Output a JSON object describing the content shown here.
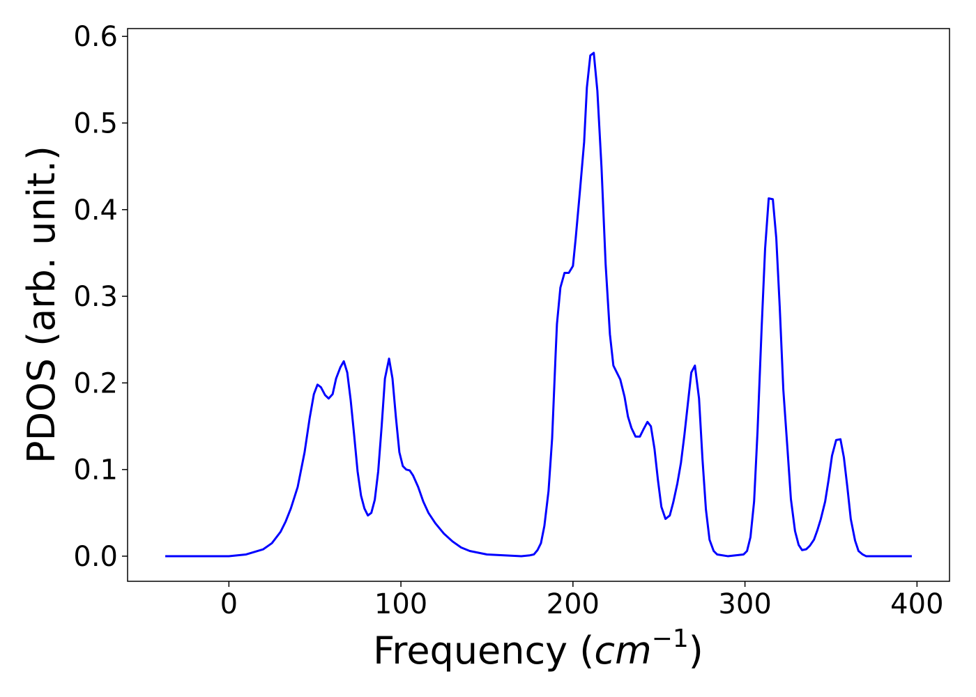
{
  "chart_data": {
    "type": "line",
    "xlabel": [
      "Frequency (",
      "cm",
      "−1",
      ")"
    ],
    "ylabel": "PDOS (arb. unit.)",
    "series": [
      {
        "color": "#0000ff",
        "x": [
          -37,
          -20,
          0,
          10,
          20,
          25,
          30,
          33,
          36,
          40,
          44,
          47,
          49.4,
          51.5,
          53.5,
          55.9,
          58,
          60.3,
          62.3,
          64.8,
          66.8,
          68.8,
          70.8,
          72.8,
          74.8,
          76.8,
          78.8,
          80.8,
          82.8,
          84.8,
          86.8,
          88.8,
          90.7,
          93.1,
          95.1,
          97.1,
          99.1,
          101.1,
          103.1,
          105.1,
          107.1,
          110,
          113,
          116,
          120,
          125,
          130,
          135,
          140,
          150,
          160,
          170,
          175,
          177.3,
          179.4,
          181.4,
          183.4,
          185.8,
          187.9,
          189.9,
          190.7,
          192.7,
          195.1,
          197.6,
          200,
          201.6,
          204,
          206.5,
          208.1,
          210.1,
          212.1,
          214.2,
          216.6,
          219,
          221.5,
          223.5,
          225.5,
          227.5,
          230,
          232,
          234,
          236.4,
          238.9,
          240.9,
          243.3,
          245.3,
          247.4,
          249.4,
          251.4,
          253.8,
          256.3,
          258.3,
          260.7,
          262.8,
          264.8,
          266.8,
          268.8,
          270.9,
          273.3,
          275.3,
          277.3,
          279.4,
          281.8,
          283.8,
          290,
          299.2,
          301.2,
          303.2,
          305.3,
          307.3,
          309.7,
          311.7,
          313.8,
          316.2,
          318.2,
          320.2,
          322.3,
          324.7,
          326.7,
          329.1,
          331.2,
          333.2,
          335.6,
          337.7,
          340.1,
          342.1,
          344.1,
          346.6,
          348.6,
          350.6,
          353,
          355.5,
          357.5,
          359.5,
          361.5,
          364,
          366,
          368.4,
          370.4,
          380,
          397
        ],
        "values": [
          0,
          0,
          0,
          0.002,
          0.008,
          0.015,
          0.028,
          0.04,
          0.055,
          0.08,
          0.12,
          0.16,
          0.187,
          0.198,
          0.195,
          0.186,
          0.182,
          0.187,
          0.205,
          0.218,
          0.225,
          0.212,
          0.18,
          0.14,
          0.098,
          0.07,
          0.055,
          0.047,
          0.05,
          0.065,
          0.098,
          0.15,
          0.205,
          0.228,
          0.205,
          0.16,
          0.12,
          0.104,
          0.1,
          0.099,
          0.093,
          0.08,
          0.063,
          0.05,
          0.038,
          0.026,
          0.017,
          0.01,
          0.006,
          0.002,
          0.001,
          0,
          0.001,
          0.002,
          0.007,
          0.015,
          0.035,
          0.075,
          0.136,
          0.232,
          0.268,
          0.31,
          0.327,
          0.327,
          0.335,
          0.367,
          0.42,
          0.478,
          0.541,
          0.578,
          0.581,
          0.537,
          0.449,
          0.337,
          0.256,
          0.22,
          0.212,
          0.204,
          0.184,
          0.161,
          0.148,
          0.138,
          0.138,
          0.146,
          0.155,
          0.15,
          0.124,
          0.088,
          0.057,
          0.043,
          0.047,
          0.062,
          0.084,
          0.108,
          0.14,
          0.176,
          0.212,
          0.22,
          0.182,
          0.112,
          0.054,
          0.019,
          0.006,
          0.002,
          0,
          0.002,
          0.006,
          0.022,
          0.063,
          0.144,
          0.264,
          0.355,
          0.413,
          0.412,
          0.367,
          0.288,
          0.192,
          0.124,
          0.066,
          0.029,
          0.013,
          0.007,
          0.008,
          0.012,
          0.019,
          0.03,
          0.043,
          0.063,
          0.088,
          0.116,
          0.134,
          0.135,
          0.114,
          0.08,
          0.043,
          0.018,
          0.006,
          0.002,
          0,
          0,
          0
        ]
      }
    ],
    "xlim": [
      -58.9,
      418.9
    ],
    "xticks": [
      0,
      100,
      200,
      300,
      400
    ],
    "ylim": [
      -0.029,
      0.609
    ],
    "yticks": [
      {
        "value": 0,
        "label": "0.0"
      },
      0.1,
      0.2,
      0.3,
      0.4,
      0.5,
      0.6
    ]
  }
}
